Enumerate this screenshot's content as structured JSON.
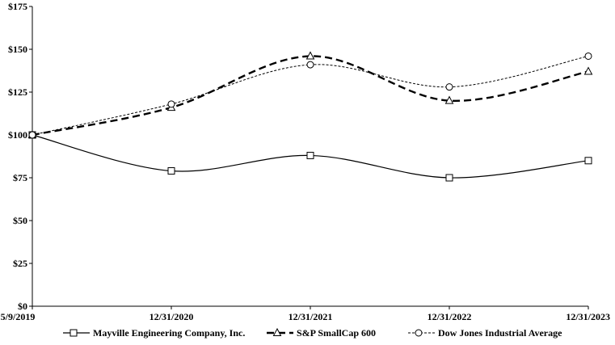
{
  "chart_data": {
    "type": "line",
    "title": "",
    "xlabel": "",
    "ylabel": "",
    "categories": [
      "5/9/2019",
      "12/31/2020",
      "12/31/2021",
      "12/31/2022",
      "12/31/2023"
    ],
    "ylim": [
      0,
      175
    ],
    "yticks": [
      0,
      25,
      50,
      75,
      100,
      125,
      150,
      175
    ],
    "ytick_labels": [
      "$0",
      "$25",
      "$50",
      "$75",
      "$100",
      "$125",
      "$150",
      "$175"
    ],
    "grid": false,
    "legend_position": "bottom",
    "series": [
      {
        "name": "Mayville Engineering Company, Inc.",
        "values": [
          100,
          79,
          88,
          75,
          85
        ],
        "color": "#000000",
        "line_style": "solid",
        "marker": "square"
      },
      {
        "name": "S&P SmallCap 600",
        "values": [
          100,
          116,
          146,
          120,
          137
        ],
        "color": "#000000",
        "line_style": "long-dash",
        "marker": "triangle"
      },
      {
        "name": "Dow Jones Industrial Average",
        "values": [
          100,
          118,
          141,
          128,
          146
        ],
        "color": "#000000",
        "line_style": "short-dash",
        "marker": "circle"
      }
    ]
  }
}
